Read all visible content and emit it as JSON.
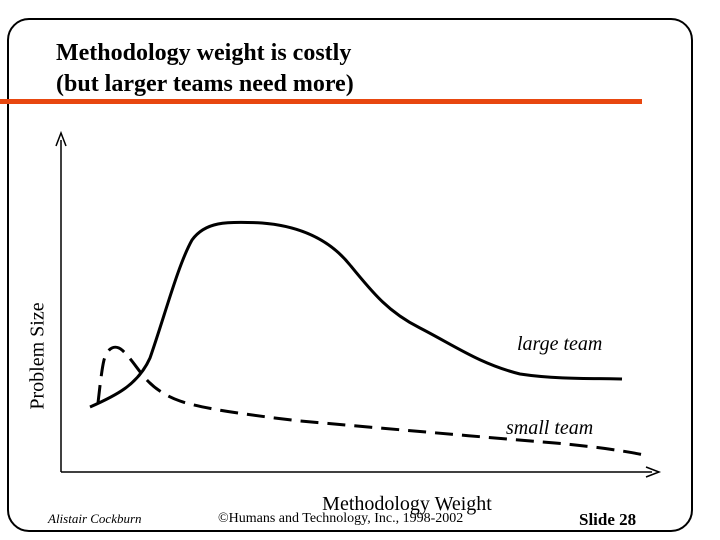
{
  "slide": {
    "title_line1": "Methodology weight is costly",
    "title_line2": "(but larger teams need more)",
    "accent_color": "#e8470f"
  },
  "chart_data": {
    "type": "line",
    "xlabel": "Methodology Weight",
    "ylabel": "Problem Size",
    "series": [
      {
        "name": "large team",
        "style": "solid"
      },
      {
        "name": "small team",
        "style": "dashed"
      }
    ]
  },
  "footer": {
    "author": "Alistair Cockburn",
    "copyright": "©Humans and Technology, Inc., 1998-2002",
    "slide_number": "Slide 28"
  }
}
